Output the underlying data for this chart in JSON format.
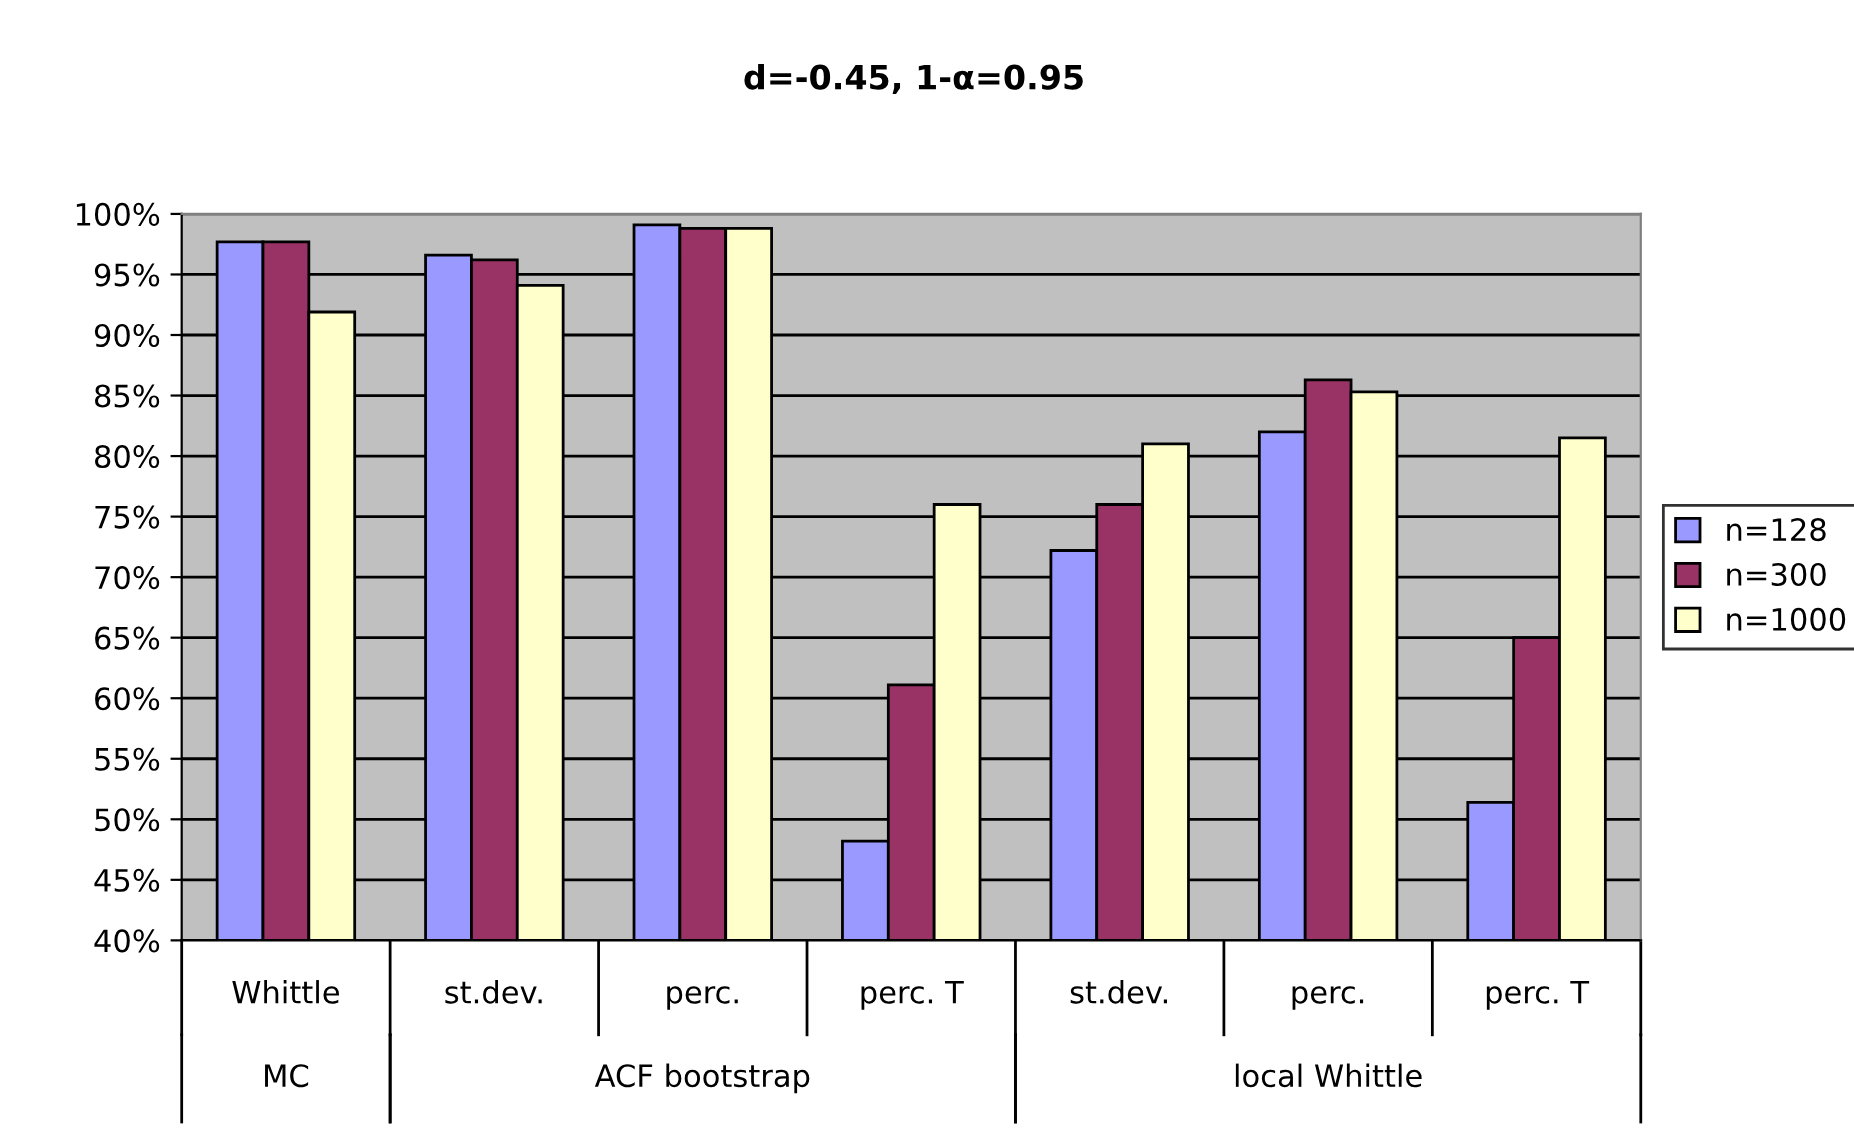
{
  "chart_data": {
    "type": "bar",
    "title": "d=-0.45, 1-α=0.95",
    "categories": [
      "Whittle",
      "st.dev.",
      "perc.",
      "perc. T",
      "st.dev.",
      "perc.",
      "perc. T"
    ],
    "annotations": [
      "MC",
      "ACF bootstrap",
      "local Whittle"
    ],
    "series": [
      {
        "name": "n=128",
        "color": "#9999ff",
        "values": [
          97.7,
          96.6,
          99.1,
          48.2,
          72.2,
          82.0,
          51.4
        ]
      },
      {
        "name": "n=300",
        "color": "#993366",
        "values": [
          97.7,
          96.2,
          98.8,
          61.1,
          76.0,
          86.3,
          65.0
        ]
      },
      {
        "name": "n=1000",
        "color": "#ffffcc",
        "values": [
          91.9,
          94.1,
          98.8,
          76.0,
          81.0,
          85.3,
          81.5
        ]
      }
    ],
    "ylim": [
      40,
      100
    ],
    "yticks": [
      {
        "value": 40,
        "label": "40%"
      },
      {
        "value": 45,
        "label": "45%"
      },
      {
        "value": 50,
        "label": "50%"
      },
      {
        "value": 55,
        "label": "55%"
      },
      {
        "value": 60,
        "label": "60%"
      },
      {
        "value": 65,
        "label": "65%"
      },
      {
        "value": 70,
        "label": "70%"
      },
      {
        "value": 75,
        "label": "75%"
      },
      {
        "value": 80,
        "label": "80%"
      },
      {
        "value": 85,
        "label": "85%"
      },
      {
        "value": 90,
        "label": "90%"
      },
      {
        "value": 95,
        "label": "95%"
      },
      {
        "value": 100,
        "label": "100%"
      }
    ],
    "grid": "y",
    "legend": "right"
  }
}
